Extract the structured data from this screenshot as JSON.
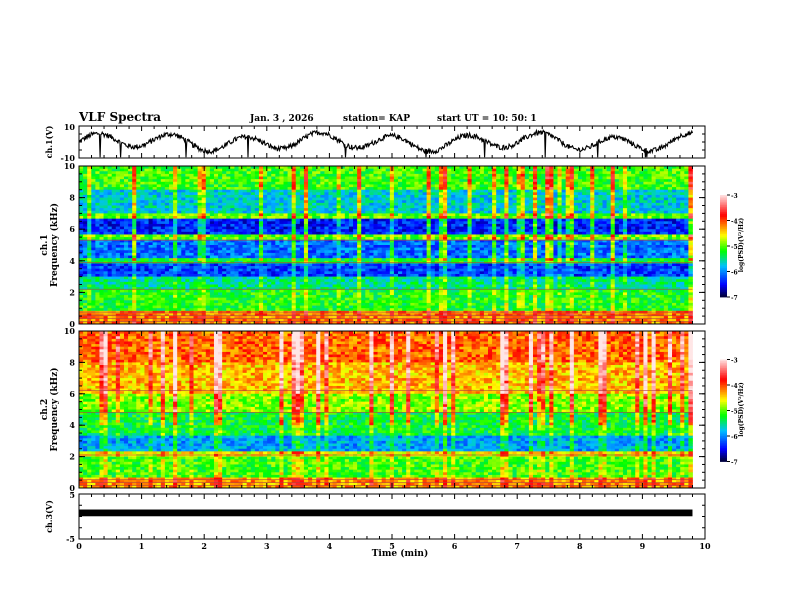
{
  "header": {
    "title": "VLF Spectra",
    "date": "Jan. 3 , 2026",
    "station": "station= KAP",
    "start": "start UT = 10: 50: 1"
  },
  "chart_data": [
    {
      "type": "line",
      "name": "ch1-waveform",
      "ylabel": "ch.1(V)",
      "ylim": [
        -10,
        10
      ],
      "yticks": [
        "10",
        "-10"
      ],
      "xlim": [
        0,
        10
      ],
      "data_end_min": 9.8,
      "description_values": "continuous wandering waveform roughly between -8 and 6 V"
    },
    {
      "type": "heatmap",
      "name": "ch1-spectrogram",
      "ylabel_line1": "ch.1",
      "ylabel_line2": "Frequency (kHz)",
      "ylim": [
        0,
        10
      ],
      "yticks": [
        "0",
        "2",
        "4",
        "6",
        "8",
        "10"
      ],
      "xlim": [
        0,
        10
      ],
      "data_end_min": 9.8,
      "colorbar": {
        "label": "log(PSD)(V²/Hz)",
        "range": [
          -7,
          -3
        ],
        "ticks": [
          "-3",
          "-4",
          "-5",
          "-6",
          "-7"
        ]
      },
      "bands_logpsd": [
        {
          "f": [
            0,
            0.9
          ],
          "v": -4.2
        },
        {
          "f": [
            0.9,
            2.2
          ],
          "v": -5.2
        },
        {
          "f": [
            2.2,
            3.0
          ],
          "v": -5.5
        },
        {
          "f": [
            3.0,
            3.8
          ],
          "v": -6.3
        },
        {
          "f": [
            3.8,
            4.2
          ],
          "v": -5.3
        },
        {
          "f": [
            4.2,
            5.3
          ],
          "v": -6.1
        },
        {
          "f": [
            5.3,
            5.6
          ],
          "v": -5.0
        },
        {
          "f": [
            5.6,
            6.6
          ],
          "v": -6.4
        },
        {
          "f": [
            6.6,
            7.0
          ],
          "v": -5.0
        },
        {
          "f": [
            7.0,
            8.5
          ],
          "v": -5.7
        },
        {
          "f": [
            8.5,
            10
          ],
          "v": -5.1
        }
      ]
    },
    {
      "type": "heatmap",
      "name": "ch2-spectrogram",
      "ylabel_line1": "ch.2",
      "ylabel_line2": "Frequency (kHz)",
      "ylim": [
        0,
        10
      ],
      "yticks": [
        "0",
        "2",
        "4",
        "6",
        "8",
        "10"
      ],
      "xlim": [
        0,
        10
      ],
      "data_end_min": 9.8,
      "colorbar": {
        "label": "log(PSD)(V²/Hz)",
        "range": [
          -7,
          -3
        ],
        "ticks": [
          "-3",
          "-4",
          "-5",
          "-6",
          "-7"
        ]
      },
      "bands_logpsd": [
        {
          "f": [
            0,
            0.7
          ],
          "v": -4.3
        },
        {
          "f": [
            0.7,
            2.0
          ],
          "v": -5.1
        },
        {
          "f": [
            2.0,
            2.3
          ],
          "v": -4.6
        },
        {
          "f": [
            2.3,
            3.4
          ],
          "v": -5.9
        },
        {
          "f": [
            3.4,
            4.8
          ],
          "v": -5.3
        },
        {
          "f": [
            4.8,
            6.0
          ],
          "v": -4.9
        },
        {
          "f": [
            6.0,
            8.0
          ],
          "v": -4.4
        },
        {
          "f": [
            8.0,
            10
          ],
          "v": -4.1
        }
      ]
    },
    {
      "type": "line",
      "name": "ch3-waveform",
      "ylabel": "ch.3(V)",
      "ylim": [
        -5,
        5
      ],
      "yticks": [
        "5",
        "-5"
      ],
      "xlim": [
        0,
        10
      ],
      "data_end_min": 9.8,
      "level_v": 0.8
    }
  ],
  "xaxis": {
    "label": "Time (min)",
    "ticks": [
      "0",
      "1",
      "2",
      "3",
      "4",
      "5",
      "6",
      "7",
      "8",
      "9",
      "10"
    ]
  },
  "colors": {
    "axis": "#000000",
    "colormap": [
      "#000033",
      "#0000ff",
      "#00bfff",
      "#00ff00",
      "#ffff00",
      "#ff8000",
      "#ff0000",
      "#ffe0e0"
    ]
  }
}
